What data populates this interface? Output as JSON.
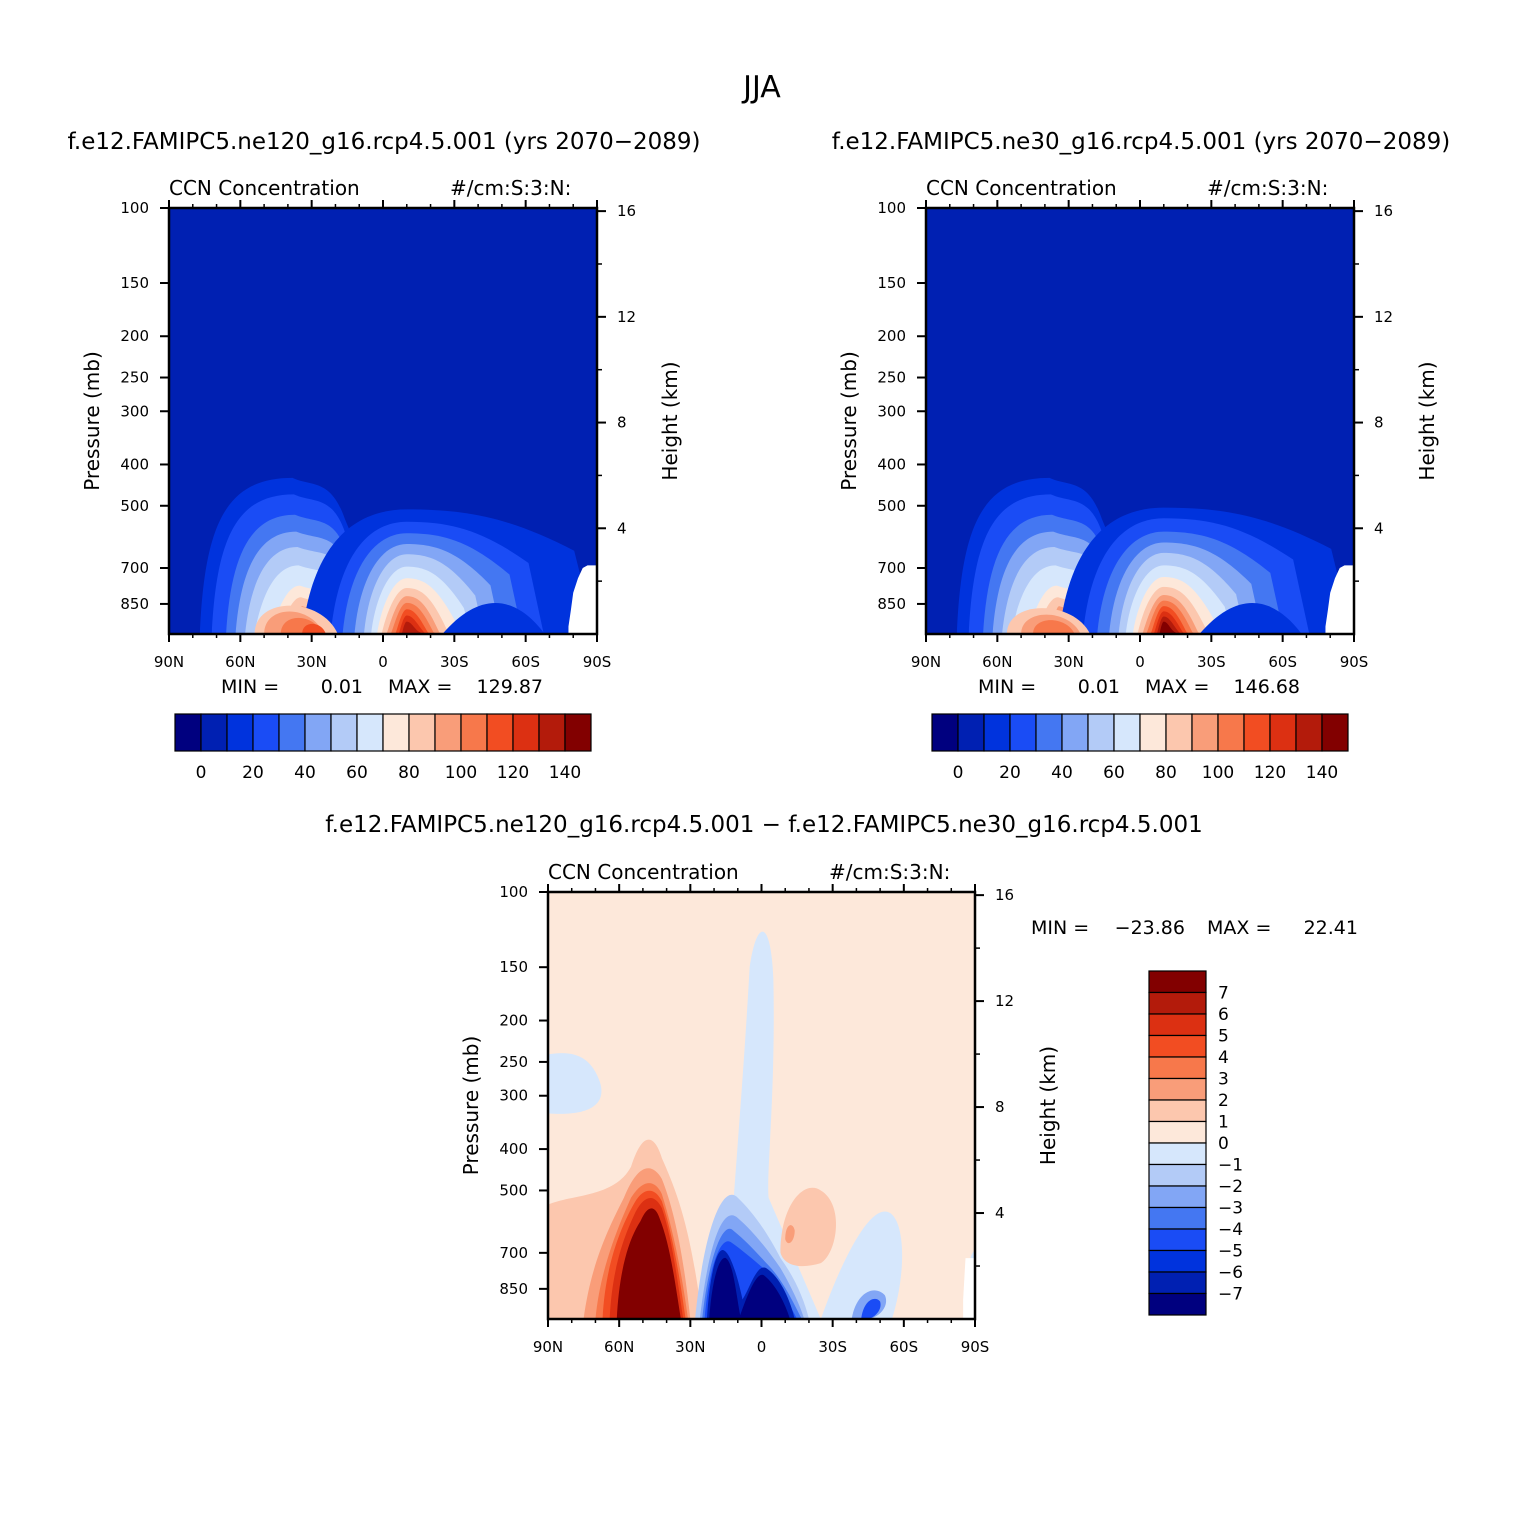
{
  "figure": {
    "title": "JJA",
    "panel_left_title": "f.e12.FAMIPC5.ne120_g16.rcp4.5.001 (yrs 2070−2089)",
    "panel_right_title": "f.e12.FAMIPC5.ne30_g16.rcp4.5.001 (yrs 2070−2089)",
    "panel_diff_title": "f.e12.FAMIPC5.ne120_g16.rcp4.5.001 − f.e12.FAMIPC5.ne30_g16.rcp4.5.001"
  },
  "colors": {
    "abs_scale": [
      "#00007f",
      "#0020b2",
      "#0033dd",
      "#1a4cf5",
      "#4477f2",
      "#82a6f5",
      "#b3cbf7",
      "#d6e7fc",
      "#fde8da",
      "#fcc7ae",
      "#f99d79",
      "#f7784b",
      "#f24d22",
      "#dc3012",
      "#b31b0b",
      "#820000"
    ],
    "diff_scale": [
      "#00007f",
      "#0020b2",
      "#0033dd",
      "#1a4cf5",
      "#4477f2",
      "#82a6f5",
      "#b3cbf7",
      "#d6e7fc",
      "#fde8da",
      "#fcc7ae",
      "#f99d79",
      "#f7784b",
      "#f24d22",
      "#dc3012",
      "#b31b0b",
      "#820000"
    ]
  },
  "chart_data": [
    {
      "id": "left",
      "type": "heatmap",
      "title": "CCN Concentration",
      "units": "#/cm:S:3:N:",
      "xlabel": "",
      "ylabel": "Pressure (mb)",
      "ylabel_right": "Height (km)",
      "x_ticks": [
        "90N",
        "60N",
        "30N",
        "0",
        "30S",
        "60S",
        "90S"
      ],
      "y_ticks": [
        100,
        150,
        200,
        250,
        300,
        400,
        500,
        700,
        850
      ],
      "y_right_ticks": [
        4,
        8,
        12,
        16
      ],
      "ylim": [
        1000,
        100
      ],
      "y_log": true,
      "min_label": "MIN =",
      "min_value": "0.01",
      "max_label": "MAX =",
      "max_value": "129.87",
      "colorbar_labels": [
        "0",
        "20",
        "40",
        "60",
        "80",
        "100",
        "120",
        "140"
      ]
    },
    {
      "id": "right",
      "type": "heatmap",
      "title": "CCN Concentration",
      "units": "#/cm:S:3:N:",
      "xlabel": "",
      "ylabel": "Pressure (mb)",
      "ylabel_right": "Height (km)",
      "x_ticks": [
        "90N",
        "60N",
        "30N",
        "0",
        "30S",
        "60S",
        "90S"
      ],
      "y_ticks": [
        100,
        150,
        200,
        250,
        300,
        400,
        500,
        700,
        850
      ],
      "y_right_ticks": [
        4,
        8,
        12,
        16
      ],
      "ylim": [
        1000,
        100
      ],
      "y_log": true,
      "min_label": "MIN =",
      "min_value": "0.01",
      "max_label": "MAX =",
      "max_value": "146.68",
      "colorbar_labels": [
        "0",
        "20",
        "40",
        "60",
        "80",
        "100",
        "120",
        "140"
      ]
    },
    {
      "id": "diff",
      "type": "heatmap",
      "title": "CCN Concentration",
      "units": "#/cm:S:3:N:",
      "xlabel": "",
      "ylabel": "Pressure (mb)",
      "ylabel_right": "Height (km)",
      "x_ticks": [
        "90N",
        "60N",
        "30N",
        "0",
        "30S",
        "60S",
        "90S"
      ],
      "y_ticks": [
        100,
        150,
        200,
        250,
        300,
        400,
        500,
        700,
        850
      ],
      "y_right_ticks": [
        4,
        8,
        12,
        16
      ],
      "ylim": [
        1000,
        100
      ],
      "y_log": true,
      "min_label": "MIN =",
      "min_value": "−23.86",
      "max_label": "MAX =",
      "max_value": "22.41",
      "colorbar_labels": [
        "7",
        "6",
        "5",
        "4",
        "3",
        "2",
        "1",
        "0",
        "−1",
        "−2",
        "−3",
        "−4",
        "−5",
        "−6",
        "−7"
      ]
    }
  ]
}
